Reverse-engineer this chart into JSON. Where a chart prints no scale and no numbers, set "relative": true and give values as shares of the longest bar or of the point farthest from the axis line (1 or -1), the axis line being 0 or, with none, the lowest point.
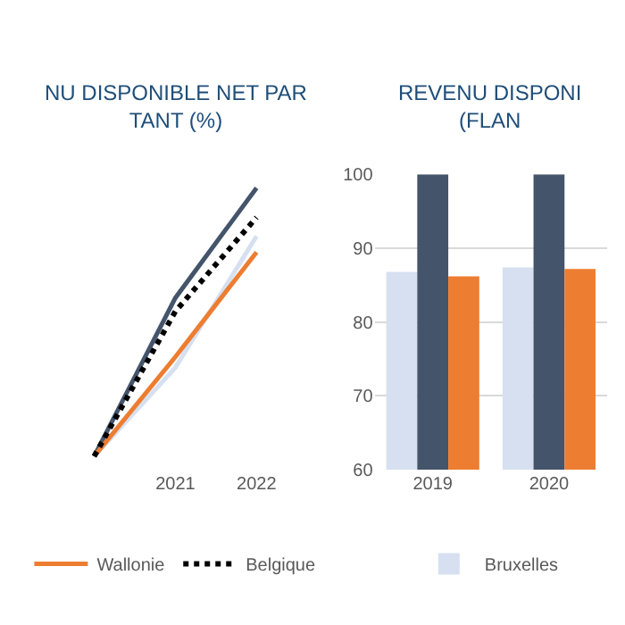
{
  "chart_data": [
    {
      "type": "line",
      "title": "NU DISPONIBLE NET PAR\nTANT (%)",
      "categories": [
        null,
        "2021",
        "2022"
      ],
      "relative": true,
      "tick_labels": "x",
      "legend": "bottom",
      "series": [
        {
          "color": "#d6e0f0",
          "values": [
            0,
            0.33,
            0.82
          ]
        },
        {
          "color": "#44546a",
          "values": [
            0,
            0.59,
            1
          ]
        },
        {
          "name": "Wallonie",
          "color": "#ed7d31",
          "values": [
            0,
            0.37,
            0.76
          ]
        },
        {
          "name": "Belgique",
          "color": "#000000",
          "line_style": "dotted",
          "values": [
            0,
            0.54,
            0.89
          ]
        }
      ]
    },
    {
      "type": "bar",
      "title": "REVENU DISPONI\n(FLAN",
      "categories": [
        "2019",
        "2020"
      ],
      "ylim": [
        60,
        100
      ],
      "yticks": [
        60,
        70,
        80,
        90,
        100
      ],
      "grid": "y",
      "legend": "bottom",
      "series": [
        {
          "name": "Bruxelles",
          "color": "#d6e0f0",
          "values": [
            86.8,
            87.4
          ]
        },
        {
          "color": "#44546a",
          "values": [
            100,
            100
          ]
        },
        {
          "color": "#ed7d31",
          "values": [
            86.2,
            87.2
          ]
        }
      ]
    }
  ]
}
